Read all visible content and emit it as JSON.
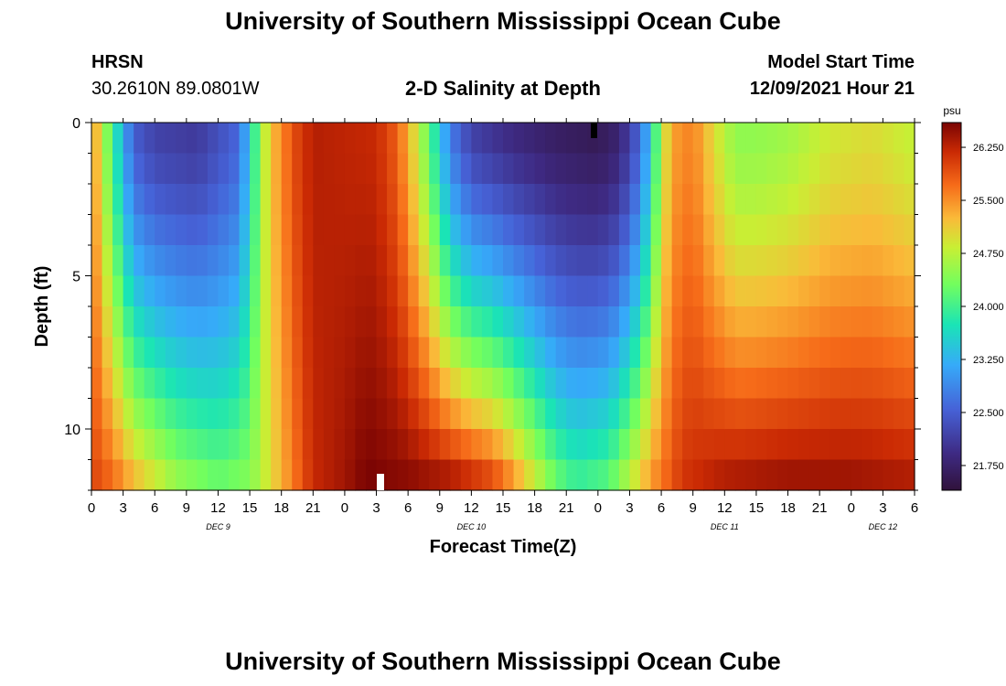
{
  "header": {
    "title": "University of Southern Mississippi Ocean Cube",
    "station": "HRSN",
    "coordinates": "30.2610N  89.0801W",
    "subtitle": "2-D Salinity at Depth",
    "model_start_label": "Model Start Time",
    "model_start_value": "12/09/2021 Hour 21"
  },
  "footer": {
    "title": "University of Southern Mississippi Ocean Cube"
  },
  "chart_data": {
    "type": "heatmap",
    "title": "2-D Salinity at Depth",
    "xlabel": "Forecast Time(Z)",
    "ylabel": "Depth (ft)",
    "x_start_hour": 0,
    "x_end_hour": 78,
    "x_step_hours": 1,
    "x_tick_labels": [
      "0",
      "3",
      "6",
      "9",
      "12",
      "15",
      "18",
      "21",
      "0",
      "3",
      "6",
      "9",
      "12",
      "15",
      "18",
      "21",
      "0",
      "3",
      "6",
      "9",
      "12",
      "15",
      "18",
      "21",
      "0",
      "3",
      "6"
    ],
    "date_labels": [
      {
        "label": "DEC 9",
        "hour": 12
      },
      {
        "label": "DEC 10",
        "hour": 36
      },
      {
        "label": "DEC 11",
        "hour": 60
      },
      {
        "label": "DEC 12",
        "hour": 75
      }
    ],
    "depth_levels_ft": [
      0.5,
      1.5,
      2.5,
      3.5,
      4.5,
      5.5,
      6.5,
      7.5,
      8.5,
      9.5,
      10.5,
      11.5
    ],
    "y_range": [
      0,
      12
    ],
    "y_ticks": [
      0,
      5,
      10
    ],
    "colorbar": {
      "unit": "psu",
      "min": 21.4,
      "max": 26.6,
      "tick_values": [
        21.75,
        22.5,
        23.25,
        24.0,
        24.75,
        25.5,
        26.25
      ],
      "tick_labels": [
        "21.750",
        "22.500",
        "23.250",
        "24.000",
        "24.750",
        "25.500",
        "26.250"
      ]
    },
    "salinity_profile": {
      "method": "time-depth keypoints, linear interpolation (psu)",
      "surface_keypoints": [
        [
          0,
          25.6
        ],
        [
          1,
          24.8
        ],
        [
          2,
          24.0
        ],
        [
          3,
          23.2
        ],
        [
          4,
          22.5
        ],
        [
          6,
          22.2
        ],
        [
          10,
          22.1
        ],
        [
          14,
          22.6
        ],
        [
          15,
          23.5
        ],
        [
          16,
          24.5
        ],
        [
          17,
          25.2
        ],
        [
          18,
          25.5
        ],
        [
          19,
          25.9
        ],
        [
          21,
          26.3
        ],
        [
          27,
          26.2
        ],
        [
          29,
          25.8
        ],
        [
          30,
          25.3
        ],
        [
          31,
          24.8
        ],
        [
          32,
          24.2
        ],
        [
          33,
          23.5
        ],
        [
          34,
          22.8
        ],
        [
          36,
          22.2
        ],
        [
          40,
          21.9
        ],
        [
          44,
          21.7
        ],
        [
          48,
          21.6
        ],
        [
          50,
          21.8
        ],
        [
          52,
          22.6
        ],
        [
          53,
          23.5
        ],
        [
          54,
          24.7
        ],
        [
          55,
          25.4
        ],
        [
          57,
          25.6
        ],
        [
          59,
          25.0
        ],
        [
          61,
          24.5
        ],
        [
          63,
          24.5
        ],
        [
          66,
          24.6
        ],
        [
          70,
          24.9
        ],
        [
          74,
          25.0
        ],
        [
          78,
          24.8
        ]
      ],
      "bottom_keypoints": [
        [
          0,
          26.0
        ],
        [
          2,
          25.7
        ],
        [
          4,
          25.2
        ],
        [
          8,
          24.5
        ],
        [
          12,
          24.2
        ],
        [
          15,
          24.4
        ],
        [
          17,
          25.0
        ],
        [
          19,
          25.6
        ],
        [
          21,
          26.2
        ],
        [
          24,
          26.4
        ],
        [
          26,
          26.6
        ],
        [
          30,
          26.5
        ],
        [
          34,
          26.3
        ],
        [
          38,
          25.9
        ],
        [
          40,
          25.4
        ],
        [
          42,
          24.8
        ],
        [
          44,
          24.2
        ],
        [
          46,
          23.9
        ],
        [
          49,
          24.1
        ],
        [
          51,
          24.7
        ],
        [
          53,
          25.4
        ],
        [
          56,
          26.1
        ],
        [
          60,
          26.3
        ],
        [
          66,
          26.4
        ],
        [
          72,
          26.4
        ],
        [
          78,
          26.3
        ]
      ]
    }
  }
}
